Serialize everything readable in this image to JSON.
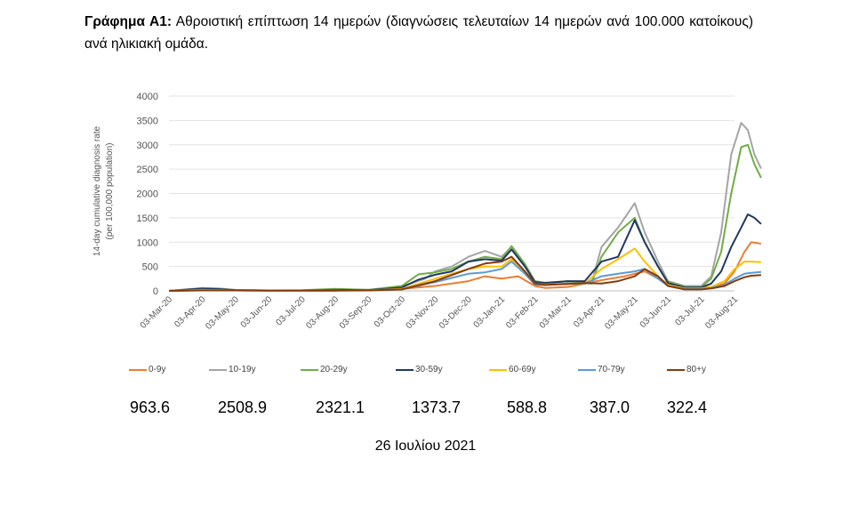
{
  "caption": {
    "label": "Γράφημα Α1:",
    "text": " Αθροιστική επίπτωση 14 ημερών (διαγνώσεις τελευταίων 14 ημερών ανά 100.000 κατοίκους) ανά ηλικιακή ομάδα."
  },
  "chart_data": {
    "type": "line",
    "ylabel": "14-day cumulative diagnosis rate (per 100,000 population)",
    "ylabel_line1": "14-day cumulative diagnosis rate",
    "ylabel_line2": "(per 100,000 population)",
    "ylim": [
      0,
      4000
    ],
    "yticks": [
      0,
      500,
      1000,
      1500,
      2000,
      2500,
      3000,
      3500,
      4000
    ],
    "xticks": [
      "03-Mar-20",
      "03-Apr-20",
      "03-May-20",
      "03-Jun-20",
      "03-Jul-20",
      "03-Aug-20",
      "03-Sep-20",
      "03-Oct-20",
      "03-Nov-20",
      "03-Dec-20",
      "03-Jan-21",
      "03-Feb-21",
      "03-Mar-21",
      "03-Apr-21",
      "03-May-21",
      "03-Jun-21",
      "03-Jul-21",
      "03-Aug-21"
    ],
    "grid": "horizontal",
    "legend_position": "bottom",
    "series": [
      {
        "name": "0-9y",
        "color": "#ED7D31",
        "x": [
          0,
          1,
          1.5,
          2,
          3,
          4,
          5,
          6,
          7,
          8,
          9,
          9.5,
          10,
          10.5,
          11,
          11.3,
          12,
          13,
          13.7,
          14.3,
          14.7,
          15,
          15.5,
          16,
          16.3,
          16.7,
          17,
          17.3,
          17.5,
          17.7,
          17.8
        ],
        "y": [
          0,
          20,
          15,
          10,
          10,
          10,
          10,
          15,
          40,
          100,
          200,
          300,
          250,
          300,
          100,
          60,
          80,
          220,
          300,
          400,
          250,
          150,
          80,
          70,
          80,
          150,
          400,
          800,
          1000,
          980,
          963.6
        ]
      },
      {
        "name": "10-19y",
        "color": "#A5A5A5",
        "x": [
          0,
          1,
          1.5,
          2,
          3,
          4,
          5,
          6,
          7,
          7.7,
          8,
          8.5,
          9,
          9.5,
          10,
          10.3,
          10.7,
          11,
          11.3,
          12,
          12.7,
          13,
          13.5,
          14,
          14.3,
          14.7,
          15,
          15.5,
          16,
          16.3,
          16.6,
          16.9,
          17.2,
          17.4,
          17.6,
          17.8
        ],
        "y": [
          0,
          60,
          50,
          20,
          10,
          10,
          30,
          20,
          90,
          250,
          400,
          500,
          700,
          820,
          700,
          900,
          500,
          200,
          150,
          200,
          150,
          900,
          1300,
          1800,
          1200,
          600,
          200,
          100,
          100,
          300,
          1200,
          2800,
          3450,
          3300,
          2800,
          2508.9
        ]
      },
      {
        "name": "20-29y",
        "color": "#70AD47",
        "x": [
          0,
          1,
          1.5,
          2,
          3,
          4,
          5,
          6,
          7,
          7.5,
          8,
          8.5,
          9,
          9.5,
          10,
          10.3,
          10.7,
          11,
          11.3,
          12,
          12.7,
          13,
          13.5,
          14,
          14.3,
          14.7,
          15,
          15.5,
          16,
          16.3,
          16.6,
          16.9,
          17.2,
          17.4,
          17.6,
          17.8
        ],
        "y": [
          0,
          50,
          40,
          15,
          10,
          15,
          40,
          20,
          100,
          340,
          380,
          450,
          600,
          700,
          650,
          920,
          550,
          200,
          170,
          200,
          150,
          700,
          1200,
          1500,
          1000,
          500,
          180,
          80,
          80,
          250,
          800,
          2000,
          2950,
          3000,
          2600,
          2321.1
        ]
      },
      {
        "name": "30-59y",
        "color": "#203864",
        "x": [
          0,
          1,
          1.5,
          2,
          3,
          4,
          5,
          6,
          7,
          7.5,
          8,
          8.5,
          9,
          9.5,
          10,
          10.3,
          10.7,
          11,
          11.3,
          12,
          12.5,
          13,
          13.5,
          14,
          14.3,
          14.7,
          15,
          15.5,
          16,
          16.3,
          16.6,
          16.9,
          17.2,
          17.4,
          17.6,
          17.8
        ],
        "y": [
          0,
          45,
          35,
          15,
          10,
          10,
          20,
          15,
          70,
          230,
          330,
          400,
          600,
          650,
          620,
          850,
          500,
          180,
          160,
          200,
          200,
          600,
          700,
          1450,
          1000,
          500,
          160,
          70,
          70,
          150,
          400,
          900,
          1300,
          1570,
          1500,
          1373.7
        ]
      },
      {
        "name": "60-69y",
        "color": "#FFC000",
        "x": [
          0,
          1,
          2,
          3,
          4,
          5,
          6,
          7,
          8,
          9,
          9.5,
          10,
          10.3,
          10.7,
          11,
          11.3,
          12,
          12.5,
          13,
          13.5,
          14,
          14.3,
          14.7,
          15,
          15.5,
          16,
          16.3,
          16.7,
          17,
          17.3,
          17.5,
          17.8
        ],
        "y": [
          0,
          20,
          10,
          5,
          5,
          10,
          10,
          40,
          250,
          450,
          500,
          500,
          650,
          400,
          150,
          130,
          150,
          150,
          450,
          650,
          870,
          600,
          300,
          120,
          50,
          50,
          80,
          200,
          450,
          600,
          600,
          588.8
        ]
      },
      {
        "name": "70-79y",
        "color": "#5B9BD5",
        "x": [
          0,
          1,
          2,
          3,
          4,
          5,
          6,
          7,
          8,
          9,
          9.5,
          10,
          10.3,
          10.7,
          11,
          11.3,
          12,
          12.5,
          13,
          13.5,
          14,
          14.3,
          14.7,
          15,
          15.5,
          16,
          16.3,
          16.7,
          17,
          17.3,
          17.5,
          17.8
        ],
        "y": [
          0,
          15,
          10,
          5,
          5,
          5,
          10,
          30,
          180,
          350,
          380,
          450,
          600,
          350,
          130,
          120,
          150,
          150,
          300,
          350,
          400,
          450,
          250,
          100,
          40,
          40,
          60,
          120,
          250,
          350,
          370,
          387.0
        ]
      },
      {
        "name": "80+y",
        "color": "#843C0C",
        "x": [
          0,
          1,
          2,
          3,
          4,
          5,
          6,
          7,
          8,
          9,
          9.5,
          10,
          10.3,
          10.7,
          11,
          11.3,
          12,
          12.5,
          13,
          13.5,
          14,
          14.3,
          14.7,
          15,
          15.5,
          16,
          16.3,
          16.7,
          17,
          17.3,
          17.5,
          17.8
        ],
        "y": [
          0,
          10,
          10,
          5,
          5,
          5,
          10,
          30,
          200,
          450,
          560,
          600,
          700,
          400,
          150,
          120,
          140,
          160,
          150,
          200,
          300,
          450,
          300,
          100,
          30,
          30,
          50,
          100,
          200,
          280,
          310,
          322.4
        ]
      }
    ]
  },
  "latest_values": [
    "963.6",
    "2508.9",
    "2321.1",
    "1373.7",
    "588.8",
    "387.0",
    "322.4"
  ],
  "footer_date": "26 Ιουλίου 2021"
}
